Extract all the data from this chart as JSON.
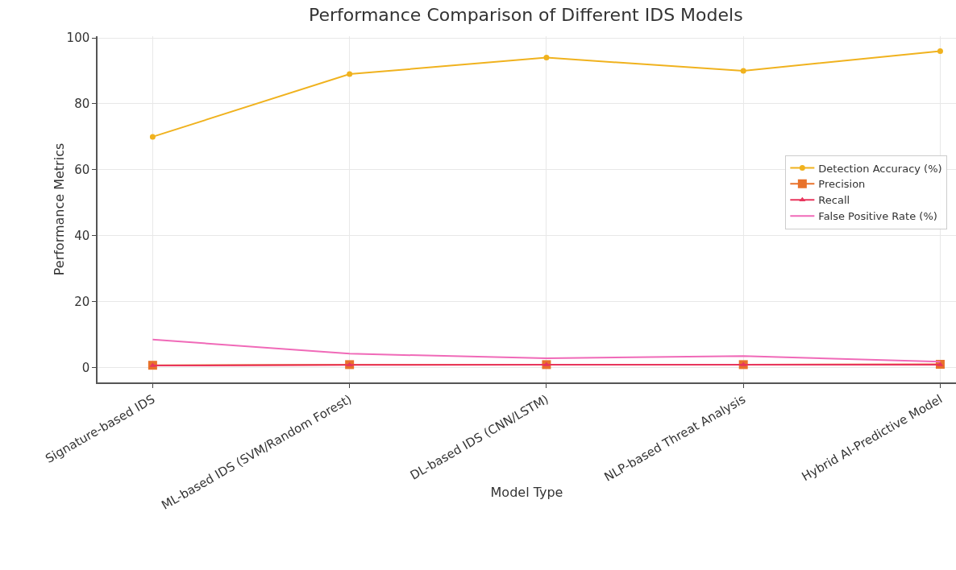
{
  "chart_data": {
    "type": "line",
    "title": "Performance Comparison of Different IDS Models",
    "xlabel": "Model Type",
    "ylabel": "Performance Metrics",
    "categories": [
      "Signature-based IDS",
      "ML-based IDS (SVM/Random Forest)",
      "DL-based IDS (CNN/LSTM)",
      "NLP-based Threat Analysis",
      "Hybrid AI-Predictive Model"
    ],
    "series": [
      {
        "name": "Detection Accuracy (%)",
        "color": "#f0b21e",
        "marker": "circle",
        "values": [
          70,
          89,
          94,
          90,
          96
        ]
      },
      {
        "name": "Precision",
        "color": "#e8722b",
        "marker": "square",
        "values": [
          0.7,
          0.9,
          0.9,
          0.9,
          1.0
        ]
      },
      {
        "name": "Recall",
        "color": "#e8365d",
        "marker": "triangle",
        "values": [
          0.6,
          0.8,
          0.9,
          0.9,
          0.9
        ]
      },
      {
        "name": "False Positive Rate (%)",
        "color": "#f06ab8",
        "marker": "none",
        "values": [
          8.5,
          4.2,
          2.8,
          3.5,
          1.8
        ]
      }
    ],
    "ylim": [
      -4.5,
      100.5
    ],
    "yticks": [
      0,
      20,
      40,
      60,
      80,
      100
    ],
    "grid": true,
    "legend": "center right"
  }
}
